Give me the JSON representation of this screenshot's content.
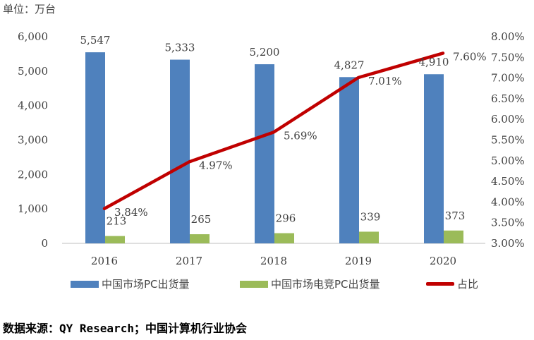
{
  "unit_label": "单位：万台",
  "source": "数据来源：QY Research；中国计算机行业协会",
  "colors": {
    "bar1": "#4f81bd",
    "bar2": "#9bbb59",
    "line": "#c00000",
    "axis": "#bfbfbf",
    "text": "#404040"
  },
  "chart_data": {
    "type": "bar",
    "categories": [
      "2016",
      "2017",
      "2018",
      "2019",
      "2020"
    ],
    "series": [
      {
        "name": "中国市场PC出货量",
        "type": "bar",
        "axis": "left",
        "values": [
          5547,
          5333,
          5200,
          4827,
          4910
        ],
        "labels": [
          "5,547",
          "5,333",
          "5,200",
          "4,827",
          "4,910"
        ]
      },
      {
        "name": "中国市场电竞PC出货量",
        "type": "bar",
        "axis": "left",
        "values": [
          213,
          265,
          296,
          339,
          373
        ],
        "labels": [
          "213",
          "265",
          "296",
          "339",
          "373"
        ]
      },
      {
        "name": "占比",
        "type": "line",
        "axis": "right",
        "values": [
          3.84,
          4.97,
          5.69,
          7.01,
          7.6
        ],
        "labels": [
          "3.84%",
          "4.97%",
          "5.69%",
          "7.01%",
          "7.60%"
        ]
      }
    ],
    "y_left": {
      "ylim": [
        0,
        6000
      ],
      "ticks": [
        "0",
        "1,000",
        "2,000",
        "3,000",
        "4,000",
        "5,000",
        "6,000"
      ]
    },
    "y_right": {
      "ylim": [
        3.0,
        8.0
      ],
      "ticks": [
        "3.00%",
        "3.50%",
        "4.00%",
        "4.50%",
        "5.00%",
        "5.50%",
        "6.00%",
        "6.50%",
        "7.00%",
        "7.50%",
        "8.00%"
      ]
    },
    "legend_position": "bottom",
    "grid": false
  }
}
